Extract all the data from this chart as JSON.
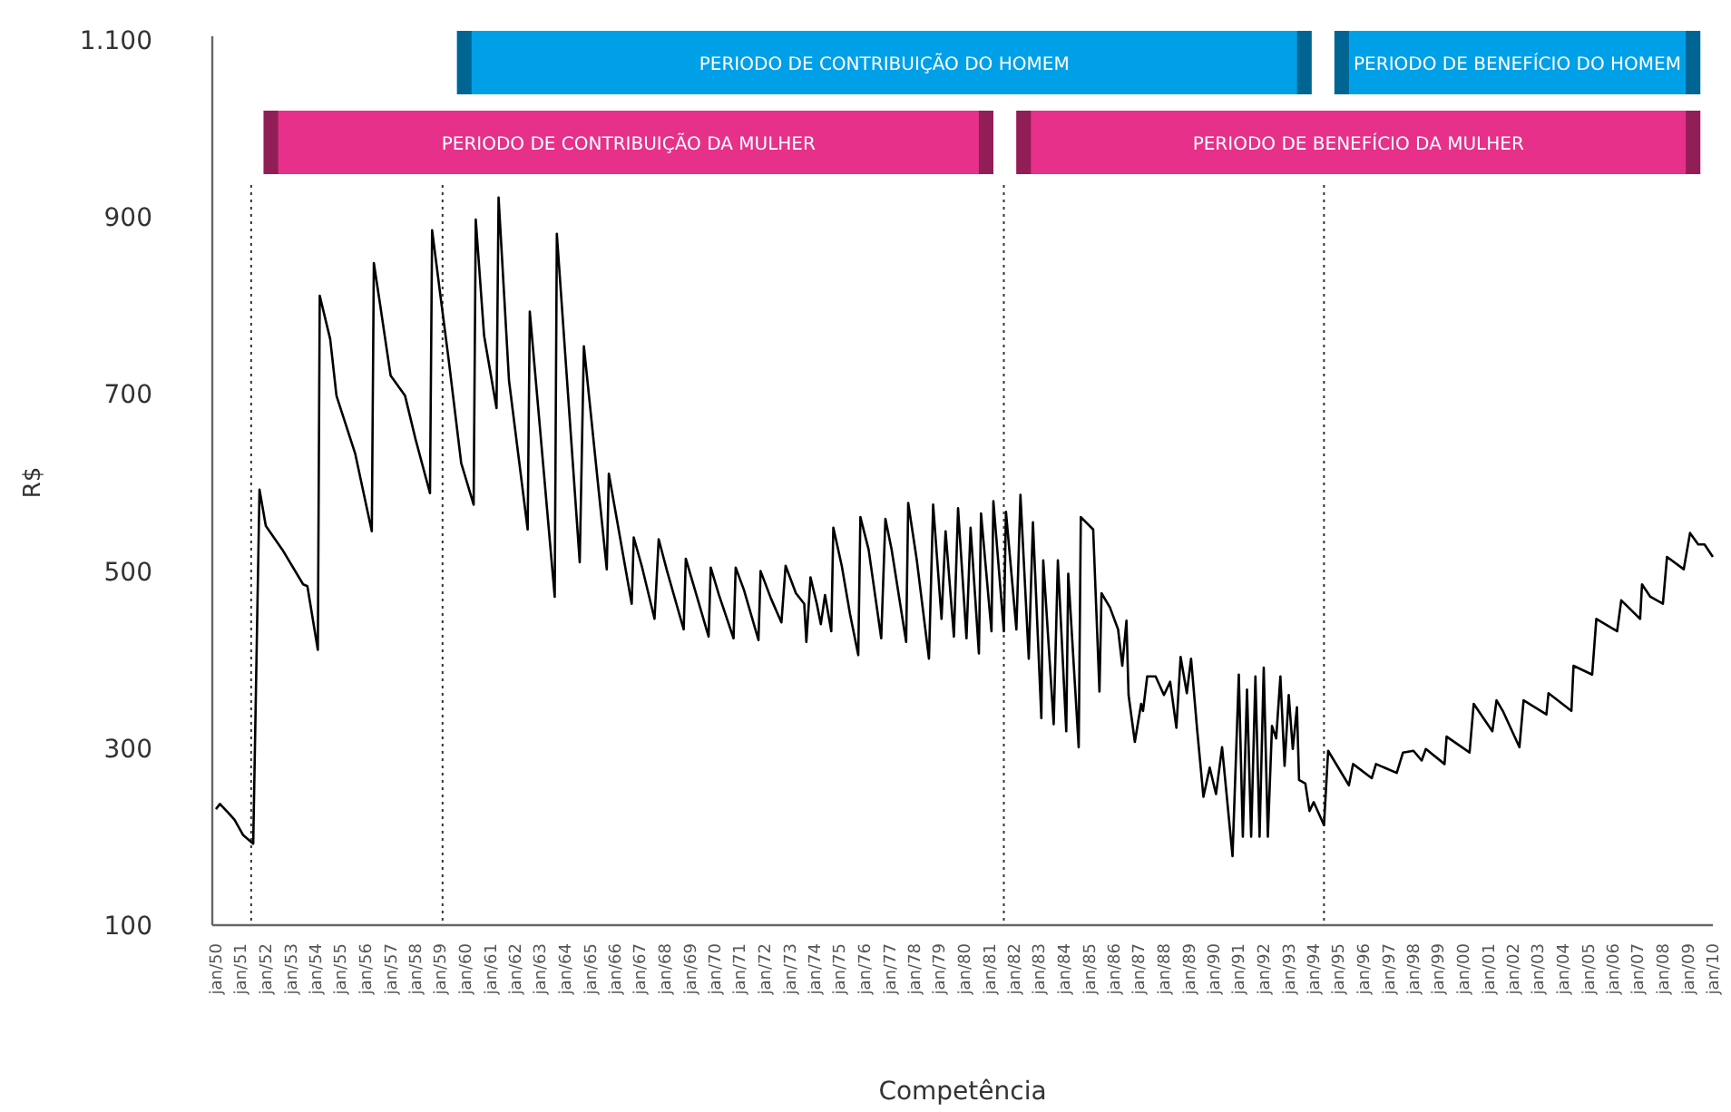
{
  "chart_data": {
    "type": "line",
    "xlabel": "Competência",
    "ylabel": "R$",
    "ylim": [
      100,
      1100
    ],
    "yticks": [
      100,
      300,
      500,
      700,
      900,
      {
        "value": 1100,
        "label": "1.100"
      }
    ],
    "xlim": [
      "1950-01",
      "2010-01"
    ],
    "xticks": [
      {
        "value": "1950-01",
        "label": "jan/50"
      },
      {
        "value": "1951-01",
        "label": "jan/51"
      },
      {
        "value": "1952-01",
        "label": "jan/52"
      },
      {
        "value": "1953-01",
        "label": "jan/53"
      },
      {
        "value": "1954-01",
        "label": "jan/54"
      },
      {
        "value": "1955-01",
        "label": "jan/55"
      },
      {
        "value": "1956-01",
        "label": "jan/56"
      },
      {
        "value": "1957-01",
        "label": "jan/57"
      },
      {
        "value": "1958-01",
        "label": "jan/58"
      },
      {
        "value": "1959-01",
        "label": "jan/59"
      },
      {
        "value": "1960-01",
        "label": "jan/60"
      },
      {
        "value": "1961-01",
        "label": "jan/61"
      },
      {
        "value": "1962-01",
        "label": "jan/62"
      },
      {
        "value": "1963-01",
        "label": "jan/63"
      },
      {
        "value": "1964-01",
        "label": "jan/64"
      },
      {
        "value": "1965-01",
        "label": "jan/65"
      },
      {
        "value": "1966-01",
        "label": "jan/66"
      },
      {
        "value": "1967-01",
        "label": "jan/67"
      },
      {
        "value": "1968-01",
        "label": "jan/68"
      },
      {
        "value": "1969-01",
        "label": "jan/69"
      },
      {
        "value": "1970-01",
        "label": "jan/70"
      },
      {
        "value": "1971-01",
        "label": "jan/71"
      },
      {
        "value": "1972-01",
        "label": "jan/72"
      },
      {
        "value": "1973-01",
        "label": "jan/73"
      },
      {
        "value": "1974-01",
        "label": "jan/74"
      },
      {
        "value": "1975-01",
        "label": "jan/75"
      },
      {
        "value": "1976-01",
        "label": "jan/76"
      },
      {
        "value": "1977-01",
        "label": "jan/77"
      },
      {
        "value": "1978-01",
        "label": "jan/78"
      },
      {
        "value": "1979-01",
        "label": "jan/79"
      },
      {
        "value": "1980-01",
        "label": "jan/80"
      },
      {
        "value": "1981-01",
        "label": "jan/81"
      },
      {
        "value": "1982-01",
        "label": "jan/82"
      },
      {
        "value": "1983-01",
        "label": "jan/83"
      },
      {
        "value": "1984-01",
        "label": "jan/84"
      },
      {
        "value": "1985-01",
        "label": "jan/85"
      },
      {
        "value": "1986-01",
        "label": "jan/86"
      },
      {
        "value": "1987-01",
        "label": "jan/87"
      },
      {
        "value": "1988-01",
        "label": "jan/88"
      },
      {
        "value": "1989-01",
        "label": "jan/89"
      },
      {
        "value": "1990-01",
        "label": "jan/90"
      },
      {
        "value": "1991-01",
        "label": "jan/91"
      },
      {
        "value": "1992-01",
        "label": "jan/92"
      },
      {
        "value": "1993-01",
        "label": "jan/93"
      },
      {
        "value": "1994-01",
        "label": "jan/94"
      },
      {
        "value": "1995-01",
        "label": "jan/95"
      },
      {
        "value": "1996-01",
        "label": "jan/96"
      },
      {
        "value": "1997-01",
        "label": "jan/97"
      },
      {
        "value": "1998-01",
        "label": "jan/98"
      },
      {
        "value": "1999-01",
        "label": "jan/99"
      },
      {
        "value": "2000-01",
        "label": "jan/00"
      },
      {
        "value": "2001-01",
        "label": "jan/01"
      },
      {
        "value": "2002-01",
        "label": "jan/02"
      },
      {
        "value": "2003-01",
        "label": "jan/03"
      },
      {
        "value": "2004-01",
        "label": "jan/04"
      },
      {
        "value": "2005-01",
        "label": "jan/05"
      },
      {
        "value": "2006-01",
        "label": "jan/06"
      },
      {
        "value": "2007-01",
        "label": "jan/07"
      },
      {
        "value": "2008-01",
        "label": "jan/08"
      },
      {
        "value": "2009-01",
        "label": "jan/09"
      },
      {
        "value": "2010-01",
        "label": "jan/10"
      }
    ],
    "grid": false,
    "marker": "none",
    "line_style": "solid",
    "series": [
      {
        "color": "#000000",
        "x": [
          "1950-01",
          "1950-03",
          "1950-07",
          "1950-10",
          "1951-02",
          "1951-07",
          "1951-10",
          "1952-01",
          "1952-09",
          "1953-07",
          "1953-09",
          "1954-02",
          "1954-03",
          "1954-08",
          "1954-11",
          "1955-08",
          "1956-04",
          "1956-05",
          "1956-08",
          "1957-01",
          "1957-08",
          "1958-01",
          "1958-08",
          "1958-09",
          "1959-01",
          "1959-05",
          "1959-11",
          "1960-05",
          "1960-06",
          "1960-10",
          "1961-04",
          "1961-05",
          "1961-10",
          "1962-07",
          "1962-08",
          "1963-08",
          "1963-09",
          "1964-08",
          "1964-10",
          "1965-09",
          "1965-10",
          "1966-09",
          "1966-10",
          "1967-02",
          "1967-08",
          "1967-10",
          "1968-02",
          "1968-10",
          "1968-11",
          "1969-10",
          "1969-11",
          "1970-03",
          "1970-10",
          "1970-11",
          "1971-03",
          "1971-10",
          "1971-11",
          "1972-04",
          "1972-09",
          "1972-11",
          "1973-04",
          "1973-08",
          "1973-09",
          "1973-11",
          "1974-02",
          "1974-04",
          "1974-06",
          "1974-09",
          "1974-10",
          "1975-02",
          "1975-06",
          "1975-10",
          "1975-11",
          "1976-03",
          "1976-09",
          "1976-11",
          "1977-02",
          "1977-09",
          "1977-10",
          "1978-02",
          "1978-08",
          "1978-10",
          "1979-02",
          "1979-04",
          "1979-08",
          "1979-10",
          "1980-02",
          "1980-04",
          "1980-08",
          "1980-09",
          "1981-02",
          "1981-03",
          "1981-08",
          "1981-09",
          "1982-02",
          "1982-04",
          "1982-08",
          "1982-10",
          "1983-02",
          "1983-03",
          "1983-08",
          "1983-10",
          "1984-02",
          "1984-03",
          "1984-08",
          "1984-09",
          "1985-03",
          "1985-06",
          "1985-07",
          "1985-11",
          "1986-03",
          "1986-05",
          "1986-07",
          "1986-08",
          "1986-11",
          "1987-02",
          "1987-03",
          "1987-05",
          "1987-09",
          "1988-01",
          "1988-04",
          "1988-07",
          "1988-09",
          "1988-12",
          "1989-02",
          "1989-05",
          "1989-08",
          "1989-11",
          "1990-02",
          "1990-05",
          "1990-10",
          "1991-01",
          "1991-03",
          "1991-05",
          "1991-07",
          "1991-09",
          "1991-11",
          "1992-01",
          "1992-03",
          "1992-05",
          "1992-07",
          "1992-09",
          "1992-11",
          "1993-01",
          "1993-03",
          "1993-05",
          "1993-06",
          "1993-09",
          "1993-11",
          "1994-01",
          "1994-06",
          "1994-08",
          "1995-06",
          "1995-08",
          "1996-05",
          "1996-07",
          "1997-05",
          "1997-08",
          "1998-01",
          "1998-05",
          "1998-07",
          "1999-04",
          "1999-05",
          "2000-04",
          "2000-06",
          "2001-03",
          "2001-05",
          "2001-08",
          "2002-04",
          "2002-06",
          "2003-05",
          "2003-06",
          "2004-05",
          "2004-06",
          "2005-03",
          "2005-05",
          "2006-03",
          "2006-05",
          "2007-02",
          "2007-03",
          "2007-07",
          "2008-01",
          "2008-03",
          "2008-11",
          "2009-02",
          "2009-06",
          "2009-09",
          "2010-01"
        ],
        "values": [
          231,
          237,
          227,
          219,
          202,
          192,
          592,
          551,
          524,
          485,
          483,
          411,
          811,
          762,
          698,
          633,
          545,
          848,
          801,
          721,
          698,
          649,
          588,
          885,
          811,
          739,
          622,
          575,
          897,
          766,
          684,
          922,
          715,
          547,
          793,
          471,
          881,
          510,
          754,
          502,
          610,
          463,
          538,
          504,
          446,
          536,
          500,
          434,
          514,
          426,
          504,
          473,
          424,
          504,
          479,
          422,
          500,
          469,
          442,
          506,
          475,
          463,
          420,
          493,
          463,
          440,
          473,
          432,
          549,
          506,
          452,
          405,
          561,
          524,
          424,
          559,
          524,
          420,
          577,
          514,
          401,
          575,
          446,
          545,
          426,
          571,
          424,
          549,
          407,
          565,
          432,
          579,
          432,
          567,
          434,
          586,
          401,
          555,
          334,
          512,
          327,
          512,
          319,
          497,
          301,
          561,
          547,
          364,
          475,
          459,
          434,
          393,
          444,
          360,
          307,
          350,
          342,
          381,
          381,
          360,
          375,
          323,
          403,
          362,
          401,
          321,
          245,
          278,
          248,
          301,
          178,
          383,
          200,
          366,
          200,
          381,
          200,
          391,
          200,
          325,
          311,
          381,
          280,
          360,
          299,
          346,
          264,
          260,
          229,
          239,
          213,
          297,
          258,
          282,
          266,
          282,
          272,
          295,
          297,
          286,
          299,
          282,
          313,
          295,
          350,
          319,
          354,
          342,
          301,
          354,
          338,
          362,
          342,
          393,
          383,
          446,
          432,
          467,
          446,
          485,
          471,
          463,
          516,
          502,
          543,
          530,
          530,
          516
        ]
      }
    ],
    "ref_lines": [
      {
        "axis": "x",
        "value": "1951-06",
        "line_style": "dotted",
        "color": "#333333"
      },
      {
        "axis": "x",
        "value": "1959-02",
        "line_style": "dotted",
        "color": "#333333"
      },
      {
        "axis": "x",
        "value": "1981-08",
        "line_style": "dotted",
        "color": "#333333"
      },
      {
        "axis": "x",
        "value": "1994-06",
        "line_style": "dotted",
        "color": "#333333"
      }
    ],
    "bands": [
      {
        "axis": "x",
        "from": "1959-09",
        "to": "1993-12",
        "label": "PERIODO DE CONTRIBUIÇÃO DO HOMEM",
        "color": "#00a0e9"
      },
      {
        "axis": "x",
        "from": "1994-11",
        "to": "2009-07",
        "label": "PERIODO DE BENEFÍCIO DO HOMEM",
        "color": "#00a0e9"
      },
      {
        "axis": "x",
        "from": "1951-12",
        "to": "1981-03",
        "label": "PERIODO DE CONTRIBUIÇÃO DA MULHER",
        "color": "#e6308a"
      },
      {
        "axis": "x",
        "from": "1982-02",
        "to": "2009-07",
        "label": "PERIODO DE BENEFÍCIO DA MULHER",
        "color": "#e6308a"
      }
    ]
  }
}
